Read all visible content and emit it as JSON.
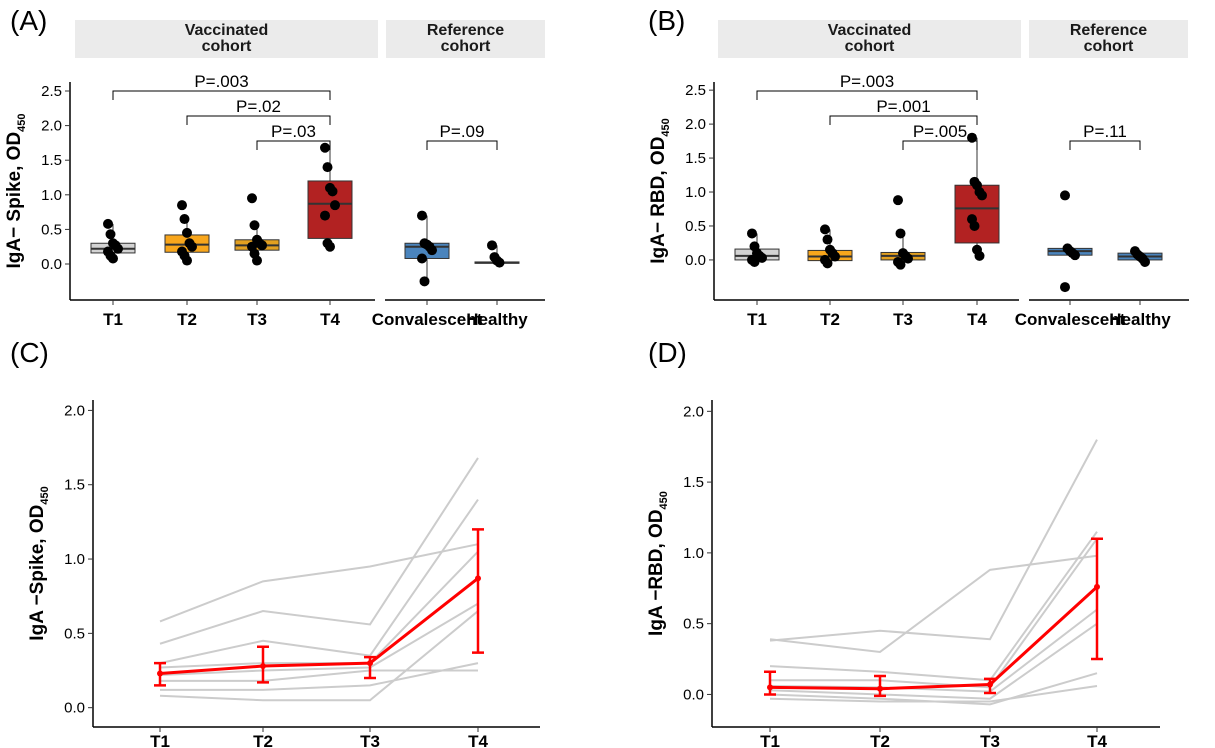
{
  "chart_data": [
    {
      "type": "box",
      "panel_label": "(A)",
      "ylabel": "IgA− Spike, OD",
      "ylabel_sub": "450",
      "ylim": [
        -0.52,
        2.63
      ],
      "yticks": [
        {
          "value": 0,
          "label": "0.0"
        },
        0.5,
        {
          "value": 1,
          "label": "1.0"
        },
        1.5,
        {
          "value": 2,
          "label": "2.0"
        },
        2.5
      ],
      "groups": [
        {
          "label": "Vaccinated cohort",
          "categories": [
            "T1",
            "T2",
            "T3",
            "T4"
          ],
          "boxes": [
            {
              "color": "#d3d3d3",
              "q1": 0.16,
              "median": 0.22,
              "q3": 0.3,
              "whisker_low": 0.06,
              "whisker_high": 0.58,
              "points": [
                0.58,
                0.43,
                0.3,
                0.27,
                0.22,
                0.18,
                0.12,
                0.08
              ]
            },
            {
              "color": "#f8a61c",
              "q1": 0.17,
              "median": 0.28,
              "q3": 0.42,
              "whisker_low": 0.05,
              "whisker_high": 0.65,
              "points": [
                0.85,
                0.65,
                0.45,
                0.3,
                0.25,
                0.18,
                0.12,
                0.05
              ]
            },
            {
              "color": "#e3a020",
              "q1": 0.2,
              "median": 0.27,
              "q3": 0.35,
              "whisker_low": 0.05,
              "whisker_high": 0.56,
              "points": [
                0.95,
                0.56,
                0.35,
                0.3,
                0.27,
                0.25,
                0.15,
                0.05
              ]
            },
            {
              "color": "#b22222",
              "q1": 0.37,
              "median": 0.87,
              "q3": 1.2,
              "whisker_low": 0.25,
              "whisker_high": 1.68,
              "points": [
                1.68,
                1.4,
                1.1,
                1.05,
                0.85,
                0.7,
                0.3,
                0.25
              ]
            }
          ],
          "comparisons": [
            {
              "from": "T3",
              "to": "T4",
              "label": "P=.03"
            },
            {
              "from": "T2",
              "to": "T4",
              "label": "P=.02"
            },
            {
              "from": "T1",
              "to": "T4",
              "label": "P=.003"
            }
          ]
        },
        {
          "label": "Reference cohort",
          "categories": [
            "Convalescent",
            "Healthy"
          ],
          "boxes": [
            {
              "color": "#4a84bd",
              "q1": 0.08,
              "median": 0.25,
              "q3": 0.3,
              "whisker_low": -0.25,
              "whisker_high": 0.7,
              "points": [
                0.7,
                0.3,
                0.28,
                0.25,
                0.2,
                0.08,
                -0.25
              ]
            },
            {
              "color": "#4a84bd",
              "q1": 0.01,
              "median": 0.02,
              "q3": 0.03,
              "whisker_low": 0.0,
              "whisker_high": 0.27,
              "points": [
                0.27,
                0.1,
                0.05,
                0.02
              ]
            }
          ],
          "comparisons": [
            {
              "from": "Convalescent",
              "to": "Healthy",
              "label": "P=.09"
            }
          ]
        }
      ]
    },
    {
      "type": "box",
      "panel_label": "(B)",
      "ylabel": "IgA− RBD, OD",
      "ylabel_sub": "450",
      "ylim": [
        -0.59,
        2.62
      ],
      "yticks": [
        {
          "value": 0,
          "label": "0.0"
        },
        0.5,
        {
          "value": 1,
          "label": "1.0"
        },
        1.5,
        {
          "value": 2,
          "label": "2.0"
        },
        2.5
      ],
      "groups": [
        {
          "label": "Vaccinated cohort",
          "categories": [
            "T1",
            "T2",
            "T3",
            "T4"
          ],
          "boxes": [
            {
              "color": "#d3d3d3",
              "q1": 0.0,
              "median": 0.06,
              "q3": 0.16,
              "whisker_low": -0.03,
              "whisker_high": 0.39,
              "points": [
                0.39,
                0.2,
                0.1,
                0.06,
                0.03,
                0.0,
                -0.03
              ]
            },
            {
              "color": "#f8a61c",
              "q1": -0.01,
              "median": 0.05,
              "q3": 0.14,
              "whisker_low": -0.05,
              "whisker_high": 0.45,
              "points": [
                0.45,
                0.3,
                0.15,
                0.1,
                0.05,
                0.0,
                -0.05
              ]
            },
            {
              "color": "#e3a020",
              "q1": 0.0,
              "median": 0.06,
              "q3": 0.11,
              "whisker_low": -0.07,
              "whisker_high": 0.39,
              "points": [
                0.88,
                0.39,
                0.1,
                0.06,
                0.02,
                -0.03,
                -0.07
              ]
            },
            {
              "color": "#b22222",
              "q1": 0.25,
              "median": 0.76,
              "q3": 1.1,
              "whisker_low": 0.06,
              "whisker_high": 1.8,
              "points": [
                1.8,
                1.15,
                1.1,
                1.0,
                0.95,
                0.6,
                0.5,
                0.15,
                0.06
              ]
            }
          ],
          "comparisons": [
            {
              "from": "T3",
              "to": "T4",
              "label": "P=.005"
            },
            {
              "from": "T2",
              "to": "T4",
              "label": "P=.001"
            },
            {
              "from": "T1",
              "to": "T4",
              "label": "P=.003"
            }
          ]
        },
        {
          "label": "Reference cohort",
          "categories": [
            "Convalescent",
            "Healthy"
          ],
          "boxes": [
            {
              "color": "#4a84bd",
              "q1": 0.07,
              "median": 0.13,
              "q3": 0.17,
              "whisker_low": 0.07,
              "whisker_high": 0.17,
              "points": [
                0.95,
                0.17,
                0.13,
                0.1,
                0.07,
                -0.4
              ]
            },
            {
              "color": "#4a84bd",
              "q1": 0.0,
              "median": 0.05,
              "q3": 0.1,
              "whisker_low": -0.03,
              "whisker_high": 0.13,
              "points": [
                0.13,
                0.08,
                0.05,
                0.02,
                -0.03
              ]
            }
          ],
          "comparisons": [
            {
              "from": "Convalescent",
              "to": "Healthy",
              "label": "P=.11"
            }
          ]
        }
      ]
    },
    {
      "type": "line",
      "panel_label": "(C)",
      "ylabel": "IgA −Spike, OD",
      "ylabel_sub": "450",
      "categories": [
        "T1",
        "T2",
        "T3",
        "T4"
      ],
      "ylim": [
        -0.13,
        2.07
      ],
      "yticks": [
        {
          "value": 0,
          "label": "0.0"
        },
        0.5,
        {
          "value": 1,
          "label": "1.0"
        },
        1.5,
        {
          "value": 2,
          "label": "2.0"
        }
      ],
      "individual_color": "#cccccc",
      "individuals": [
        [
          0.58,
          0.85,
          0.95,
          1.1
        ],
        [
          0.43,
          0.65,
          0.56,
          1.68
        ],
        [
          0.3,
          0.45,
          0.35,
          1.4
        ],
        [
          0.27,
          0.3,
          0.3,
          1.05
        ],
        [
          0.22,
          0.25,
          0.27,
          0.7
        ],
        [
          0.18,
          0.18,
          0.25,
          0.25
        ],
        [
          0.12,
          0.12,
          0.15,
          0.3
        ],
        [
          0.08,
          0.05,
          0.05,
          0.65
        ]
      ],
      "mean": {
        "color": "#ff0000",
        "values": [
          0.23,
          0.28,
          0.3,
          0.87
        ],
        "lower": [
          0.15,
          0.17,
          0.2,
          0.37
        ],
        "upper": [
          0.3,
          0.41,
          0.34,
          1.2
        ]
      }
    },
    {
      "type": "line",
      "panel_label": "(D)",
      "ylabel": "IgA −RBD, OD",
      "ylabel_sub": "450",
      "categories": [
        "T1",
        "T2",
        "T3",
        "T4"
      ],
      "ylim": [
        -0.23,
        2.08
      ],
      "yticks": [
        {
          "value": 0,
          "label": "0.0"
        },
        0.5,
        {
          "value": 1,
          "label": "1.0"
        },
        1.5,
        {
          "value": 2,
          "label": "2.0"
        }
      ],
      "individual_color": "#cccccc",
      "individuals": [
        [
          0.39,
          0.3,
          0.88,
          0.98
        ],
        [
          0.38,
          0.45,
          0.39,
          1.8
        ],
        [
          0.2,
          0.16,
          0.1,
          1.15
        ],
        [
          0.1,
          0.1,
          0.05,
          1.1
        ],
        [
          0.06,
          0.05,
          0.02,
          0.6
        ],
        [
          0.03,
          0.0,
          -0.03,
          0.5
        ],
        [
          0.0,
          -0.03,
          -0.07,
          0.15
        ],
        [
          -0.03,
          -0.05,
          -0.05,
          0.06
        ]
      ],
      "mean": {
        "color": "#ff0000",
        "values": [
          0.05,
          0.04,
          0.07,
          0.76
        ],
        "lower": [
          0.0,
          -0.01,
          0.01,
          0.25
        ],
        "upper": [
          0.16,
          0.13,
          0.11,
          1.1
        ]
      }
    }
  ]
}
